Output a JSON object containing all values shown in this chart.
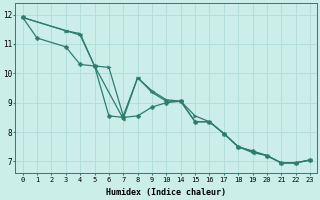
{
  "xlabel": "Humidex (Indice chaleur)",
  "bg_color": "#cceee8",
  "line_color": "#2d7d6e",
  "grid_color": "#b0ddd6",
  "xtick_labels": [
    "0",
    "1",
    "2",
    "3",
    "4",
    "5",
    "6",
    "7",
    "8",
    "9",
    "10",
    "14",
    "15",
    "16",
    "17",
    "18",
    "19",
    "20",
    "21",
    "22",
    "23"
  ],
  "line1_x_idx": [
    0,
    1,
    3,
    4,
    5,
    6,
    7,
    8,
    9,
    10,
    11,
    12,
    13,
    14,
    15,
    16,
    17,
    18,
    19,
    20
  ],
  "line1_y": [
    11.9,
    11.2,
    10.9,
    10.3,
    10.25,
    8.55,
    8.5,
    8.55,
    8.85,
    9.0,
    9.05,
    8.35,
    8.35,
    7.95,
    7.5,
    7.35,
    7.2,
    6.95,
    6.95,
    7.05
  ],
  "line2_x_idx": [
    0,
    3,
    4,
    5,
    6,
    7,
    8,
    9,
    10,
    11,
    12,
    13,
    14,
    15,
    16,
    17,
    18,
    19,
    20
  ],
  "line2_y": [
    11.9,
    11.45,
    11.35,
    10.25,
    10.2,
    8.55,
    9.85,
    9.4,
    9.1,
    9.05,
    8.55,
    8.35,
    7.95,
    7.5,
    7.35,
    7.2,
    6.95,
    6.95,
    7.05
  ],
  "line3_x_idx": [
    0,
    3,
    4,
    5,
    7,
    8,
    9,
    10,
    11,
    12,
    13,
    14,
    15,
    16,
    17,
    18,
    19,
    20
  ],
  "line3_y": [
    11.9,
    11.45,
    11.3,
    10.25,
    8.45,
    9.85,
    9.35,
    9.05,
    9.05,
    8.35,
    8.35,
    7.95,
    7.5,
    7.3,
    7.2,
    6.95,
    6.95,
    7.05
  ],
  "ylim": [
    6.6,
    12.4
  ],
  "yticks": [
    7,
    8,
    9,
    10,
    11,
    12
  ]
}
